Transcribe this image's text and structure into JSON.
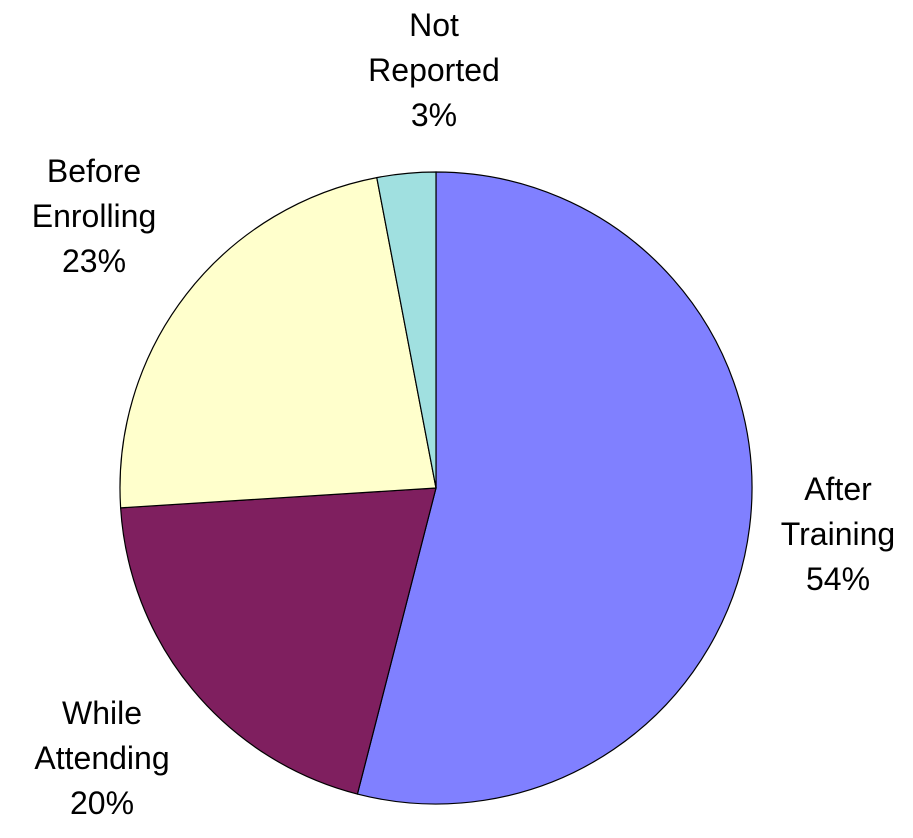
{
  "chart_data": {
    "type": "pie",
    "title": "",
    "start_angle_deg": 0,
    "direction": "clockwise",
    "slices": [
      {
        "label_lines": [
          "After",
          "Training"
        ],
        "percent_label": "54%",
        "value": 54,
        "color": "#8080FF"
      },
      {
        "label_lines": [
          "While",
          "Attending"
        ],
        "percent_label": "20%",
        "value": 20,
        "color": "#7F1F5F"
      },
      {
        "label_lines": [
          "Before",
          "Enrolling"
        ],
        "percent_label": "23%",
        "value": 23,
        "color": "#FFFFCC"
      },
      {
        "label_lines": [
          "Not",
          "Reported"
        ],
        "percent_label": "3%",
        "value": 3,
        "color": "#A0E0E0"
      }
    ]
  }
}
